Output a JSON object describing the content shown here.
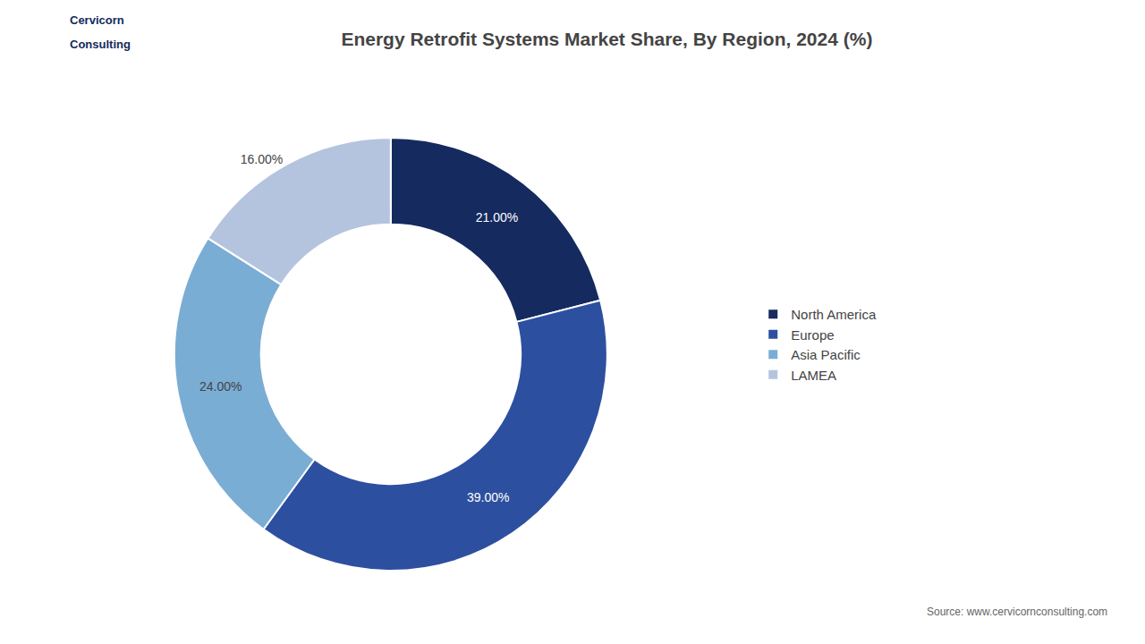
{
  "chart_data": {
    "type": "donut",
    "title": "Energy Retrofit Systems Market Share, By Region, 2024 (%)",
    "categories": [
      "North America",
      "Europe",
      "Asia Pacific",
      "LAMEA"
    ],
    "values": [
      21.0,
      39.0,
      24.0,
      16.0
    ],
    "value_labels": [
      "21.00%",
      "39.00%",
      "24.00%",
      "16.00%"
    ],
    "colors": [
      "#152a5e",
      "#2d4fa0",
      "#7aadd4",
      "#b4c4de"
    ],
    "data_labels": true,
    "legend": "right",
    "annotations": [
      "Source: www.cervicornconsulting.com",
      "Cervicorn",
      "Consulting"
    ]
  }
}
